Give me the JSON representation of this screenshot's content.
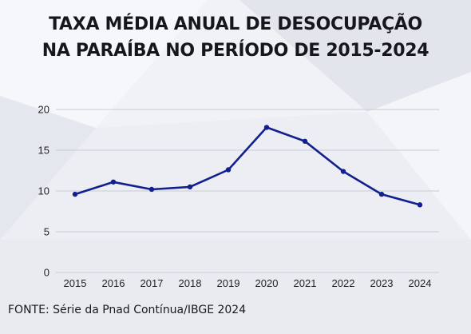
{
  "title_lines": [
    "TAXA MÉDIA ANUAL DE DESOCUPAÇÃO",
    "NA PARAÍBA NO PERÍODO DE 2015-2024"
  ],
  "source": "FONTE: Série da Pnad Contínua/IBGE 2024",
  "colors": {
    "line": "#12208f",
    "grid": "#c9ccd3",
    "text": "#15171c"
  },
  "chart_data": {
    "type": "line",
    "title": "TAXA MÉDIA ANUAL DE DESOCUPAÇÃO NA PARAÍBA NO PERÍODO DE 2015-2024",
    "xlabel": "",
    "ylabel": "",
    "categories": [
      "2015",
      "2016",
      "2017",
      "2018",
      "2019",
      "2020",
      "2021",
      "2022",
      "2023",
      "2024"
    ],
    "series": [
      {
        "values": [
          9.6,
          11.1,
          10.2,
          10.5,
          12.6,
          17.8,
          16.1,
          12.4,
          9.6,
          8.3
        ]
      }
    ],
    "ylim": [
      0,
      20
    ],
    "yticks": [
      0,
      5,
      10,
      15,
      20
    ],
    "grid": true,
    "legend": "none"
  }
}
